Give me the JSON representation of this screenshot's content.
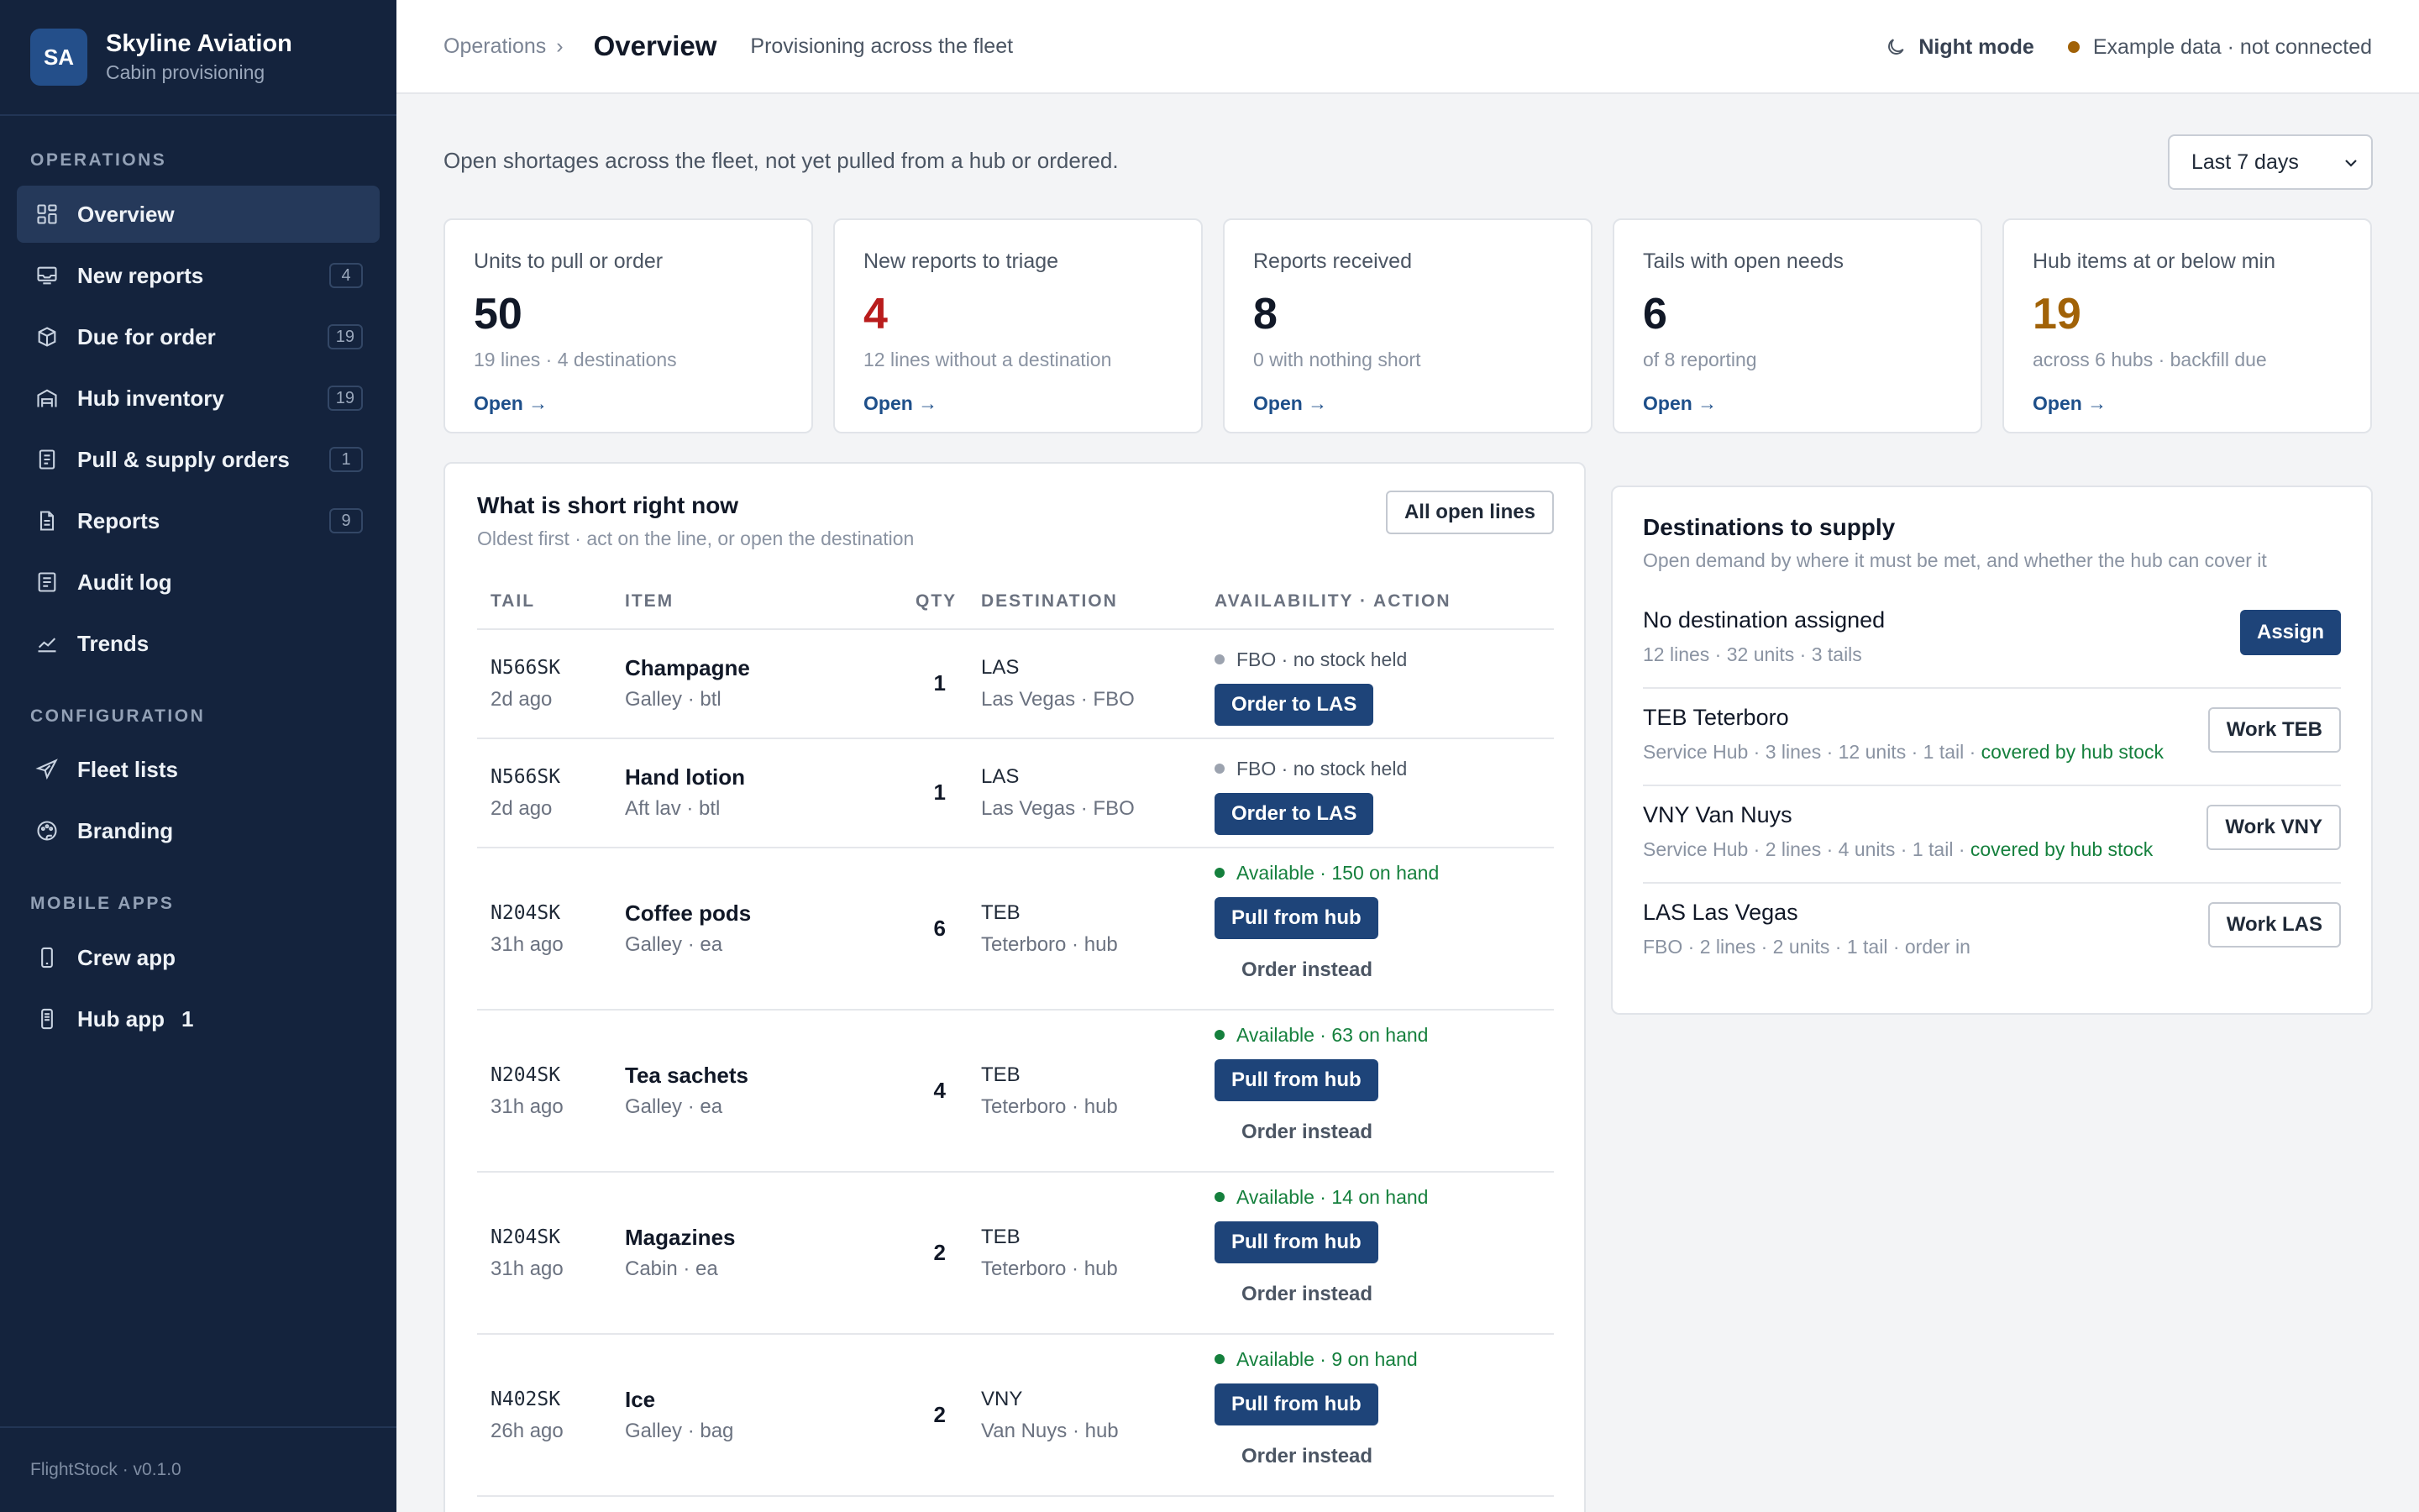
{
  "brand": {
    "initials": "SA",
    "name": "Skyline Aviation",
    "subtitle": "Cabin provisioning"
  },
  "sidebar": {
    "sections": [
      {
        "label": "OPERATIONS"
      },
      {
        "label": "CONFIGURATION"
      },
      {
        "label": "MOBILE APPS"
      }
    ],
    "items": [
      {
        "label": "Overview",
        "icon": "grid-icon",
        "active": true
      },
      {
        "label": "New reports",
        "icon": "inbox-icon",
        "badge": "4"
      },
      {
        "label": "Due for order",
        "icon": "box-icon",
        "badge": "19"
      },
      {
        "label": "Hub inventory",
        "icon": "warehouse-icon",
        "badge": "19"
      },
      {
        "label": "Pull & supply orders",
        "icon": "clipboard-icon",
        "badge": "1"
      },
      {
        "label": "Reports",
        "icon": "document-icon",
        "badge": "9"
      },
      {
        "label": "Audit log",
        "icon": "list-icon"
      },
      {
        "label": "Trends",
        "icon": "trend-icon"
      },
      {
        "label": "Fleet lists",
        "icon": "plane-icon"
      },
      {
        "label": "Branding",
        "icon": "palette-icon"
      },
      {
        "label": "Crew app",
        "icon": "phone-icon"
      },
      {
        "label": "Hub app",
        "icon": "scanner-icon",
        "badge": "1"
      }
    ],
    "footer": "FlightStock · v0.1.0"
  },
  "header": {
    "breadcrumb": "Operations",
    "breadcrumb_sep": "›",
    "title": "Overview",
    "subtitle": "Provisioning across the fleet",
    "night_mode": "Night mode",
    "status": "Example data · not connected",
    "status_color": "#a16207"
  },
  "intro": "Open shortages across the fleet, not yet pulled from a hub or ordered.",
  "range": {
    "selected": "Last 7 days"
  },
  "stats": [
    {
      "label": "Units to pull or order",
      "value": "50",
      "note": "19 lines · 4 destinations",
      "link": "Open →"
    },
    {
      "label": "New reports to triage",
      "value": "4",
      "note": "12 lines without a destination",
      "link": "Open →",
      "color": "#b91c1c"
    },
    {
      "label": "Reports received",
      "value": "8",
      "note": "0 with nothing short",
      "link": "Open →"
    },
    {
      "label": "Tails with open needs",
      "value": "6",
      "note": "of 8 reporting",
      "link": "Open →"
    },
    {
      "label": "Hub items at or below min",
      "value": "19",
      "note": "across 6 hubs · backfill due",
      "link": "Open →",
      "color": "#a16207"
    }
  ],
  "short": {
    "title": "What is short right now",
    "subtitle": "Oldest first · act on the line, or open the destination",
    "all_button": "All open lines",
    "columns": {
      "tail": "TAIL",
      "item": "ITEM",
      "qty": "QTY",
      "destination": "DESTINATION",
      "availability": "AVAILABILITY · ACTION"
    },
    "rows": [
      {
        "tail": "N566SK",
        "ago": "2d ago",
        "item": "Champagne",
        "item_sub": "Galley · btl",
        "qty": "1",
        "dest_code": "LAS",
        "dest_name": "Las Vegas · FBO",
        "availability": "FBO · no stock held",
        "action": "Order to LAS"
      },
      {
        "tail": "N566SK",
        "ago": "2d ago",
        "item": "Hand lotion",
        "item_sub": "Aft lav · btl",
        "qty": "1",
        "dest_code": "LAS",
        "dest_name": "Las Vegas · FBO",
        "availability": "FBO · no stock held",
        "action": "Order to LAS"
      },
      {
        "tail": "N204SK",
        "ago": "31h ago",
        "item": "Coffee pods",
        "item_sub": "Galley · ea",
        "qty": "6",
        "dest_code": "TEB",
        "dest_name": "Teterboro · hub",
        "availability": "Available · 150 on hand",
        "action": "Pull from hub",
        "secondary": "Order instead"
      },
      {
        "tail": "N204SK",
        "ago": "31h ago",
        "item": "Tea sachets",
        "item_sub": "Galley · ea",
        "qty": "4",
        "dest_code": "TEB",
        "dest_name": "Teterboro · hub",
        "availability": "Available · 63 on hand",
        "action": "Pull from hub",
        "secondary": "Order instead"
      },
      {
        "tail": "N204SK",
        "ago": "31h ago",
        "item": "Magazines",
        "item_sub": "Cabin · ea",
        "qty": "2",
        "dest_code": "TEB",
        "dest_name": "Teterboro · hub",
        "availability": "Available · 14 on hand",
        "action": "Pull from hub",
        "secondary": "Order instead"
      },
      {
        "tail": "N402SK",
        "ago": "26h ago",
        "item": "Ice",
        "item_sub": "Galley · bag",
        "qty": "2",
        "dest_code": "VNY",
        "dest_name": "Van Nuys · hub",
        "availability": "Available · 9 on hand",
        "action": "Pull from hub",
        "secondary": "Order instead"
      }
    ]
  },
  "destinations": {
    "title": "Destinations to supply",
    "subtitle": "Open demand by where it must be met, and whether the hub can cover it",
    "rows": [
      {
        "title": "No destination assigned",
        "meta": "12 lines · 32 units · 3 tails",
        "button": "Assign"
      },
      {
        "title": "TEB Teterboro",
        "meta": "Service Hub · 3 lines · 12 units · 1 tail · ",
        "covered": "covered by hub stock",
        "button": "Work TEB"
      },
      {
        "title": "VNY Van Nuys",
        "meta": "Service Hub · 2 lines · 4 units · 1 tail · ",
        "covered": "covered by hub stock",
        "button": "Work VNY"
      },
      {
        "title": "LAS Las Vegas",
        "meta": "FBO · 2 lines · 2 units · 1 tail · order in",
        "button": "Work LAS"
      }
    ]
  }
}
